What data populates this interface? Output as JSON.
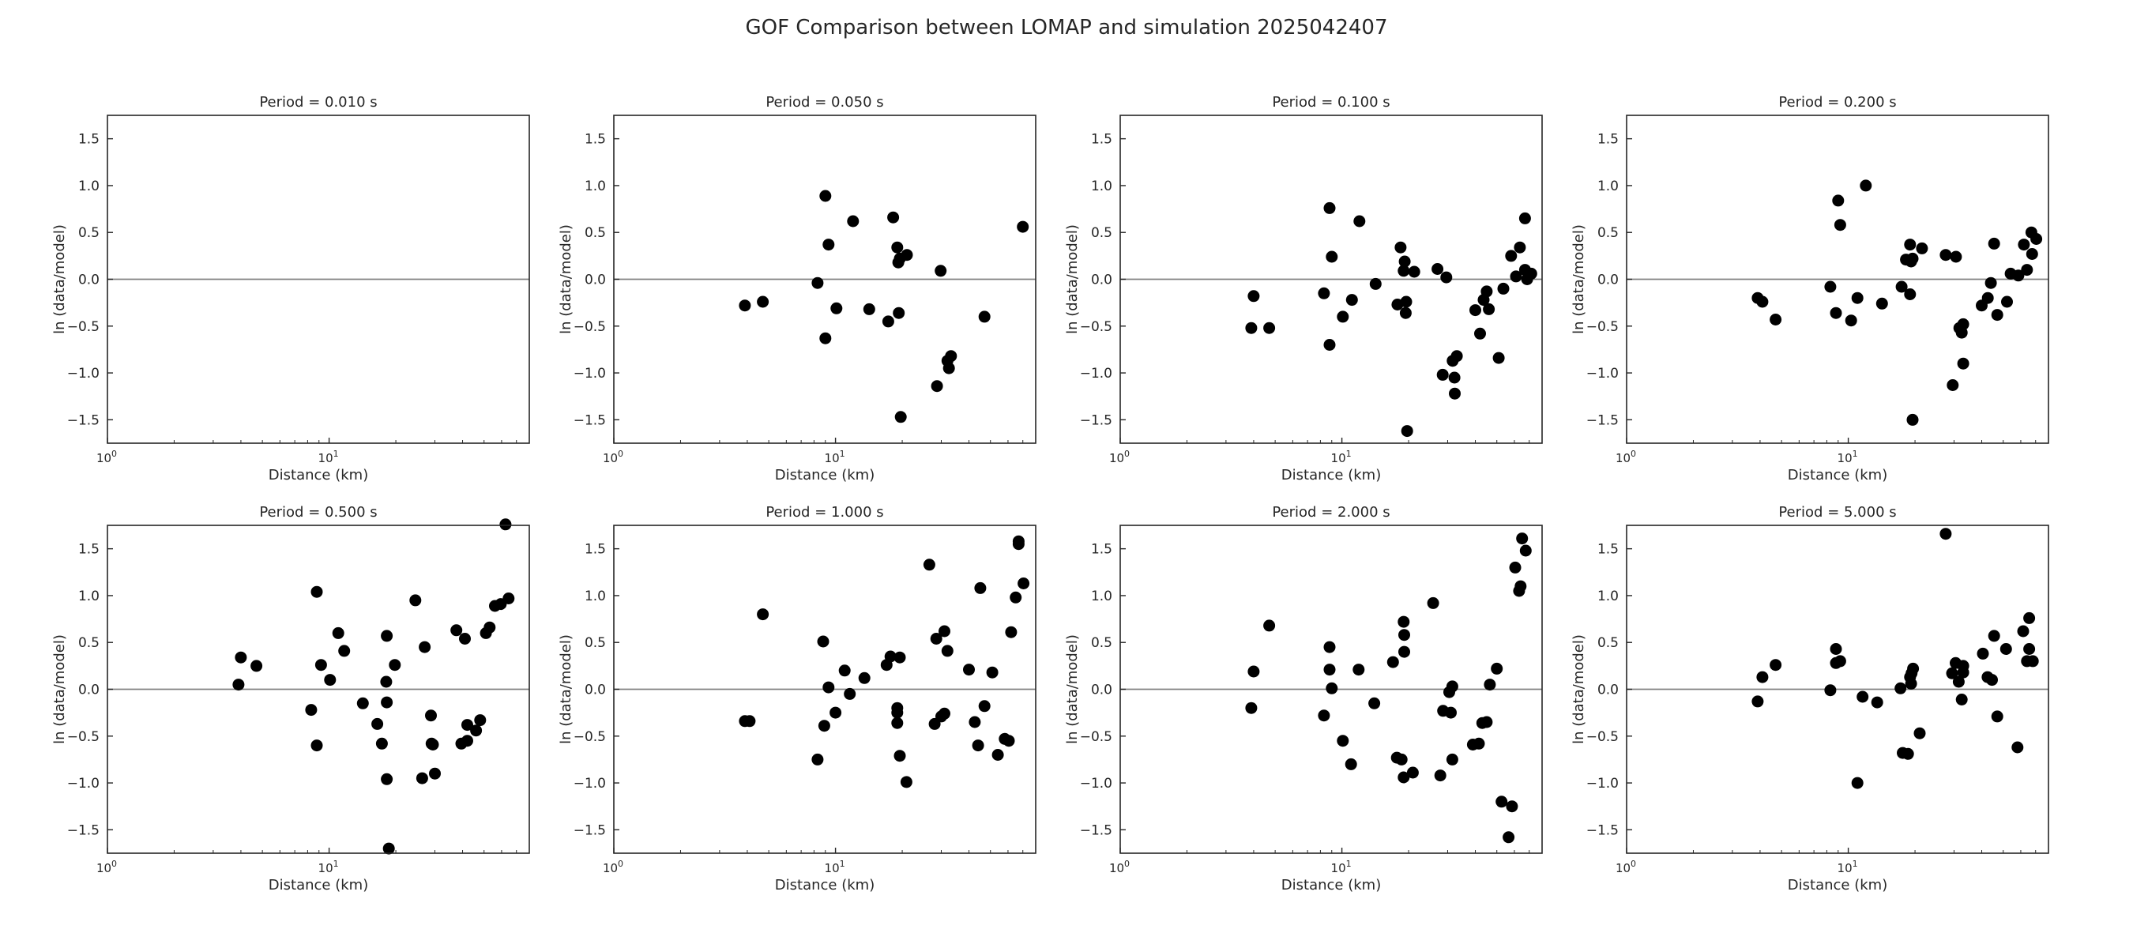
{
  "figure": {
    "title": "GOF Comparison between LOMAP and simulation 2025042407"
  },
  "style": {
    "marker_color": "#000000",
    "axis_color": "#262626",
    "zero_line_color": "#808080"
  },
  "chart_data": [
    {
      "type": "scatter",
      "title": "Period = 0.010 s",
      "xlabel": "Distance (km)",
      "ylabel": "ln (data/model)",
      "x_scale": "log",
      "xlim": [
        1,
        80
      ],
      "ylim": [
        -1.75,
        1.75
      ],
      "xticks": [
        {
          "value": 1,
          "base": "10",
          "exp": "0"
        },
        {
          "value": 10,
          "base": "10",
          "exp": "1"
        }
      ],
      "yticks": [
        -1.5,
        -1.0,
        -0.5,
        0.0,
        0.5,
        1.0,
        1.5
      ],
      "ytick_labels": [
        "−1.5",
        "−1.0",
        "−0.5",
        "0.0",
        "0.5",
        "1.0",
        "1.5"
      ],
      "points": []
    },
    {
      "type": "scatter",
      "title": "Period = 0.050 s",
      "xlabel": "Distance (km)",
      "ylabel": "ln (data/model)",
      "x_scale": "log",
      "xlim": [
        1,
        80
      ],
      "ylim": [
        -1.75,
        1.75
      ],
      "xticks": [
        {
          "value": 1,
          "base": "10",
          "exp": "0"
        },
        {
          "value": 10,
          "base": "10",
          "exp": "1"
        }
      ],
      "yticks": [
        -1.5,
        -1.0,
        -0.5,
        0.0,
        0.5,
        1.0,
        1.5
      ],
      "ytick_labels": [
        "−1.5",
        "−1.0",
        "−0.5",
        "0.0",
        "0.5",
        "1.0",
        "1.5"
      ],
      "points": [
        [
          3.9,
          -0.28
        ],
        [
          4.7,
          -0.24
        ],
        [
          8.3,
          -0.04
        ],
        [
          9.0,
          0.89
        ],
        [
          9.3,
          0.37
        ],
        [
          9.0,
          -0.63
        ],
        [
          10.1,
          -0.31
        ],
        [
          12.0,
          0.62
        ],
        [
          14.2,
          -0.32
        ],
        [
          17.3,
          -0.45
        ],
        [
          18.2,
          0.66
        ],
        [
          19.0,
          0.34
        ],
        [
          19.2,
          0.18
        ],
        [
          19.5,
          0.22
        ],
        [
          19.3,
          -0.36
        ],
        [
          19.7,
          -1.47
        ],
        [
          21.0,
          0.26
        ],
        [
          29.8,
          0.09
        ],
        [
          28.7,
          -1.14
        ],
        [
          32.0,
          -0.87
        ],
        [
          32.5,
          -0.95
        ],
        [
          33.2,
          -0.82
        ],
        [
          47.0,
          -0.4
        ],
        [
          70.0,
          0.56
        ]
      ]
    },
    {
      "type": "scatter",
      "title": "Period = 0.100 s",
      "xlabel": "Distance (km)",
      "ylabel": "ln (data/model)",
      "x_scale": "log",
      "xlim": [
        1,
        80
      ],
      "ylim": [
        -1.75,
        1.75
      ],
      "xticks": [
        {
          "value": 1,
          "base": "10",
          "exp": "0"
        },
        {
          "value": 10,
          "base": "10",
          "exp": "1"
        }
      ],
      "yticks": [
        -1.5,
        -1.0,
        -0.5,
        0.0,
        0.5,
        1.0,
        1.5
      ],
      "ytick_labels": [
        "−1.5",
        "−1.0",
        "−0.5",
        "0.0",
        "0.5",
        "1.0",
        "1.5"
      ],
      "points": [
        [
          3.9,
          -0.52
        ],
        [
          4.0,
          -0.18
        ],
        [
          4.7,
          -0.52
        ],
        [
          8.3,
          -0.15
        ],
        [
          8.8,
          0.76
        ],
        [
          9.0,
          0.24
        ],
        [
          8.8,
          -0.7
        ],
        [
          10.1,
          -0.4
        ],
        [
          11.1,
          -0.22
        ],
        [
          12.0,
          0.62
        ],
        [
          14.2,
          -0.05
        ],
        [
          17.8,
          -0.27
        ],
        [
          18.4,
          0.34
        ],
        [
          19.2,
          0.19
        ],
        [
          19.0,
          0.09
        ],
        [
          19.5,
          -0.24
        ],
        [
          19.4,
          -0.36
        ],
        [
          19.7,
          -1.62
        ],
        [
          21.2,
          0.08
        ],
        [
          27.0,
          0.11
        ],
        [
          28.5,
          -1.02
        ],
        [
          29.6,
          0.02
        ],
        [
          31.6,
          -0.87
        ],
        [
          32.2,
          -1.05
        ],
        [
          33.0,
          -0.82
        ],
        [
          32.3,
          -1.22
        ],
        [
          40.0,
          -0.33
        ],
        [
          42.0,
          -0.58
        ],
        [
          43.6,
          -0.22
        ],
        [
          45.0,
          -0.13
        ],
        [
          46.0,
          -0.32
        ],
        [
          51.0,
          -0.84
        ],
        [
          53.5,
          -0.1
        ],
        [
          58.0,
          0.25
        ],
        [
          61.0,
          0.03
        ],
        [
          63.5,
          0.34
        ],
        [
          67.0,
          0.65
        ],
        [
          67.0,
          0.1
        ],
        [
          68.5,
          0.0
        ],
        [
          71.5,
          0.06
        ]
      ]
    },
    {
      "type": "scatter",
      "title": "Period = 0.200 s",
      "xlabel": "Distance (km)",
      "ylabel": "ln (data/model)",
      "x_scale": "log",
      "xlim": [
        1,
        80
      ],
      "ylim": [
        -1.75,
        1.75
      ],
      "xticks": [
        {
          "value": 1,
          "base": "10",
          "exp": "0"
        },
        {
          "value": 10,
          "base": "10",
          "exp": "1"
        }
      ],
      "yticks": [
        -1.5,
        -1.0,
        -0.5,
        0.0,
        0.5,
        1.0,
        1.5
      ],
      "ytick_labels": [
        "−1.5",
        "−1.0",
        "−0.5",
        "0.0",
        "0.5",
        "1.0",
        "1.5"
      ],
      "points": [
        [
          3.9,
          -0.2
        ],
        [
          4.1,
          -0.24
        ],
        [
          4.7,
          -0.43
        ],
        [
          8.3,
          -0.08
        ],
        [
          9.0,
          0.84
        ],
        [
          9.2,
          0.58
        ],
        [
          8.8,
          -0.36
        ],
        [
          10.3,
          -0.44
        ],
        [
          11.0,
          -0.2
        ],
        [
          12.0,
          1.0
        ],
        [
          14.2,
          -0.26
        ],
        [
          17.4,
          -0.08
        ],
        [
          18.2,
          0.21
        ],
        [
          19.0,
          0.37
        ],
        [
          19.5,
          0.22
        ],
        [
          19.2,
          0.19
        ],
        [
          19.0,
          -0.16
        ],
        [
          19.5,
          -1.5
        ],
        [
          21.5,
          0.33
        ],
        [
          27.5,
          0.26
        ],
        [
          29.6,
          -1.13
        ],
        [
          30.6,
          0.24
        ],
        [
          31.7,
          -0.52
        ],
        [
          32.5,
          -0.57
        ],
        [
          33.0,
          -0.48
        ],
        [
          33.0,
          -0.9
        ],
        [
          40.0,
          -0.28
        ],
        [
          42.6,
          -0.2
        ],
        [
          44.0,
          -0.04
        ],
        [
          45.5,
          0.38
        ],
        [
          47.0,
          -0.38
        ],
        [
          52.0,
          -0.24
        ],
        [
          54.0,
          0.06
        ],
        [
          58.5,
          0.04
        ],
        [
          62.0,
          0.37
        ],
        [
          64.0,
          0.1
        ],
        [
          67.0,
          0.5
        ],
        [
          67.5,
          0.27
        ],
        [
          70.5,
          0.43
        ]
      ]
    },
    {
      "type": "scatter",
      "title": "Period = 0.500 s",
      "xlabel": "Distance (km)",
      "ylabel": "ln (data/model)",
      "x_scale": "log",
      "xlim": [
        1,
        80
      ],
      "ylim": [
        -1.75,
        1.75
      ],
      "xticks": [
        {
          "value": 1,
          "base": "10",
          "exp": "0"
        },
        {
          "value": 10,
          "base": "10",
          "exp": "1"
        }
      ],
      "yticks": [
        -1.5,
        -1.0,
        -0.5,
        0.0,
        0.5,
        1.0,
        1.5
      ],
      "ytick_labels": [
        "−1.5",
        "−1.0",
        "−0.5",
        "0.0",
        "0.5",
        "1.0",
        "1.5"
      ],
      "points": [
        [
          3.9,
          0.05
        ],
        [
          4.0,
          0.34
        ],
        [
          4.7,
          0.25
        ],
        [
          8.3,
          -0.22
        ],
        [
          8.8,
          1.04
        ],
        [
          8.8,
          -0.6
        ],
        [
          9.2,
          0.26
        ],
        [
          10.1,
          0.1
        ],
        [
          11.0,
          0.6
        ],
        [
          11.7,
          0.41
        ],
        [
          14.2,
          -0.15
        ],
        [
          16.5,
          -0.37
        ],
        [
          17.3,
          -0.58
        ],
        [
          18.1,
          0.08
        ],
        [
          18.2,
          0.57
        ],
        [
          18.2,
          -0.14
        ],
        [
          18.2,
          -0.96
        ],
        [
          18.6,
          -1.7
        ],
        [
          19.8,
          0.26
        ],
        [
          24.5,
          0.95
        ],
        [
          26.3,
          -0.95
        ],
        [
          27.0,
          0.45
        ],
        [
          28.8,
          -0.28
        ],
        [
          29.0,
          -0.58
        ],
        [
          29.4,
          -0.59
        ],
        [
          30.0,
          -0.9
        ],
        [
          37.5,
          0.63
        ],
        [
          39.5,
          -0.58
        ],
        [
          41.0,
          0.54
        ],
        [
          42.0,
          -0.38
        ],
        [
          42.0,
          -0.55
        ],
        [
          46.0,
          -0.44
        ],
        [
          48.0,
          -0.33
        ],
        [
          51.0,
          0.6
        ],
        [
          53.0,
          0.66
        ],
        [
          56.0,
          0.89
        ],
        [
          59.5,
          0.91
        ],
        [
          62.5,
          1.76
        ],
        [
          64.5,
          0.97
        ]
      ]
    },
    {
      "type": "scatter",
      "title": "Period = 1.000 s",
      "xlabel": "Distance (km)",
      "ylabel": "ln (data/model)",
      "x_scale": "log",
      "xlim": [
        1,
        80
      ],
      "ylim": [
        -1.75,
        1.75
      ],
      "xticks": [
        {
          "value": 1,
          "base": "10",
          "exp": "0"
        },
        {
          "value": 10,
          "base": "10",
          "exp": "1"
        }
      ],
      "yticks": [
        -1.5,
        -1.0,
        -0.5,
        0.0,
        0.5,
        1.0,
        1.5
      ],
      "ytick_labels": [
        "−1.5",
        "−1.0",
        "−0.5",
        "0.0",
        "0.5",
        "1.0",
        "1.5"
      ],
      "points": [
        [
          3.9,
          -0.34
        ],
        [
          4.1,
          -0.34
        ],
        [
          4.7,
          0.8
        ],
        [
          8.3,
          -0.75
        ],
        [
          8.8,
          0.51
        ],
        [
          8.9,
          -0.39
        ],
        [
          9.3,
          0.02
        ],
        [
          10.0,
          -0.25
        ],
        [
          11.0,
          0.2
        ],
        [
          11.6,
          -0.05
        ],
        [
          13.5,
          0.12
        ],
        [
          17.0,
          0.26
        ],
        [
          17.7,
          0.35
        ],
        [
          19.0,
          -0.2
        ],
        [
          19.0,
          -0.25
        ],
        [
          19.0,
          -0.36
        ],
        [
          19.5,
          0.34
        ],
        [
          19.5,
          -0.71
        ],
        [
          20.9,
          -0.99
        ],
        [
          26.5,
          1.33
        ],
        [
          28.0,
          -0.37
        ],
        [
          28.5,
          0.54
        ],
        [
          30.0,
          -0.29
        ],
        [
          31.0,
          -0.26
        ],
        [
          31.0,
          0.62
        ],
        [
          32.0,
          0.41
        ],
        [
          40.0,
          0.21
        ],
        [
          42.5,
          -0.35
        ],
        [
          44.0,
          -0.6
        ],
        [
          45.0,
          1.08
        ],
        [
          47.0,
          -0.18
        ],
        [
          51.0,
          0.18
        ],
        [
          54.0,
          -0.7
        ],
        [
          58.0,
          -0.53
        ],
        [
          60.5,
          -0.55
        ],
        [
          62.0,
          0.61
        ],
        [
          65.0,
          0.98
        ],
        [
          67.0,
          1.55
        ],
        [
          67.0,
          1.58
        ],
        [
          70.5,
          1.13
        ]
      ]
    },
    {
      "type": "scatter",
      "title": "Period = 2.000 s",
      "xlabel": "Distance (km)",
      "ylabel": "ln (data/model)",
      "x_scale": "log",
      "xlim": [
        1,
        80
      ],
      "ylim": [
        -1.75,
        1.75
      ],
      "xticks": [
        {
          "value": 1,
          "base": "10",
          "exp": "0"
        },
        {
          "value": 10,
          "base": "10",
          "exp": "1"
        }
      ],
      "yticks": [
        -1.5,
        -1.0,
        -0.5,
        0.0,
        0.5,
        1.0,
        1.5
      ],
      "ytick_labels": [
        "−1.5",
        "−1.0",
        "−0.5",
        "0.0",
        "0.5",
        "1.0",
        "1.5"
      ],
      "points": [
        [
          3.9,
          -0.2
        ],
        [
          4.0,
          0.19
        ],
        [
          4.7,
          0.68
        ],
        [
          8.3,
          -0.28
        ],
        [
          8.8,
          0.45
        ],
        [
          8.8,
          0.21
        ],
        [
          9.0,
          0.01
        ],
        [
          10.1,
          -0.55
        ],
        [
          11.0,
          -0.8
        ],
        [
          11.9,
          0.21
        ],
        [
          14.0,
          -0.15
        ],
        [
          17.0,
          0.29
        ],
        [
          17.7,
          -0.73
        ],
        [
          18.6,
          -0.75
        ],
        [
          19.0,
          0.72
        ],
        [
          19.1,
          0.58
        ],
        [
          19.1,
          0.4
        ],
        [
          19.0,
          -0.94
        ],
        [
          20.9,
          -0.89
        ],
        [
          25.8,
          0.92
        ],
        [
          27.8,
          -0.92
        ],
        [
          28.6,
          -0.23
        ],
        [
          30.5,
          -0.03
        ],
        [
          31.0,
          -0.25
        ],
        [
          31.5,
          0.03
        ],
        [
          31.5,
          -0.75
        ],
        [
          39.0,
          -0.59
        ],
        [
          41.5,
          -0.58
        ],
        [
          43.0,
          -0.36
        ],
        [
          45.0,
          -0.35
        ],
        [
          46.5,
          0.05
        ],
        [
          50.0,
          0.22
        ],
        [
          52.5,
          -1.2
        ],
        [
          56.5,
          -1.58
        ],
        [
          58.5,
          -1.25
        ],
        [
          60.5,
          1.3
        ],
        [
          63.0,
          1.05
        ],
        [
          64.0,
          1.1
        ],
        [
          65.0,
          1.61
        ],
        [
          67.5,
          1.48
        ]
      ]
    },
    {
      "type": "scatter",
      "title": "Period = 5.000 s",
      "xlabel": "Distance (km)",
      "ylabel": "ln (data/model)",
      "x_scale": "log",
      "xlim": [
        1,
        80
      ],
      "ylim": [
        -1.75,
        1.75
      ],
      "xticks": [
        {
          "value": 1,
          "base": "10",
          "exp": "0"
        },
        {
          "value": 10,
          "base": "10",
          "exp": "1"
        }
      ],
      "yticks": [
        -1.5,
        -1.0,
        -0.5,
        0.0,
        0.5,
        1.0,
        1.5
      ],
      "ytick_labels": [
        "−1.5",
        "−1.0",
        "−0.5",
        "0.0",
        "0.5",
        "1.0",
        "1.5"
      ],
      "points": [
        [
          3.9,
          -0.13
        ],
        [
          4.1,
          0.13
        ],
        [
          4.7,
          0.26
        ],
        [
          8.3,
          -0.01
        ],
        [
          8.8,
          0.43
        ],
        [
          8.8,
          0.28
        ],
        [
          9.2,
          0.3
        ],
        [
          11.0,
          -1.0
        ],
        [
          11.6,
          -0.08
        ],
        [
          13.5,
          -0.14
        ],
        [
          17.2,
          0.01
        ],
        [
          17.6,
          -0.68
        ],
        [
          18.6,
          -0.69
        ],
        [
          19.0,
          0.13
        ],
        [
          19.3,
          0.17
        ],
        [
          19.2,
          0.06
        ],
        [
          19.6,
          0.22
        ],
        [
          21.0,
          -0.47
        ],
        [
          27.5,
          1.66
        ],
        [
          29.4,
          0.17
        ],
        [
          30.5,
          0.28
        ],
        [
          31.5,
          0.08
        ],
        [
          32.5,
          -0.11
        ],
        [
          33.0,
          0.25
        ],
        [
          33.0,
          0.18
        ],
        [
          40.5,
          0.38
        ],
        [
          42.5,
          0.13
        ],
        [
          44.5,
          0.1
        ],
        [
          45.5,
          0.57
        ],
        [
          47.0,
          -0.29
        ],
        [
          51.5,
          0.43
        ],
        [
          58.0,
          -0.62
        ],
        [
          61.5,
          0.62
        ],
        [
          64.0,
          0.3
        ],
        [
          65.5,
          0.76
        ],
        [
          65.5,
          0.43
        ],
        [
          68.0,
          0.3
        ]
      ]
    }
  ]
}
